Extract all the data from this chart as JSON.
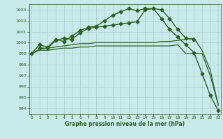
{
  "title": "Graphe pression niveau de la mer (hPa)",
  "bg_color": "#c8eaea",
  "grid_color": "#a8cece",
  "line_color": "#2d6020",
  "ylim": [
    993.5,
    1003.5
  ],
  "xlim": [
    -0.3,
    23.3
  ],
  "yticks": [
    994,
    995,
    996,
    997,
    998,
    999,
    1000,
    1001,
    1002,
    1003
  ],
  "xticks": [
    0,
    1,
    2,
    3,
    4,
    5,
    6,
    7,
    8,
    9,
    10,
    11,
    12,
    13,
    14,
    15,
    16,
    17,
    18,
    19,
    20,
    21,
    22,
    23
  ],
  "lines": [
    {
      "x": [
        0,
        1,
        2,
        3,
        4,
        5,
        6,
        7,
        8,
        9,
        10,
        11,
        12,
        13,
        14,
        15,
        16,
        17,
        18,
        19,
        20,
        21,
        22,
        23
      ],
      "y": [
        999.0,
        999.8,
        999.6,
        1000.3,
        1000.1,
        1000.6,
        1001.1,
        1001.4,
        1001.5,
        1002.0,
        1002.5,
        1002.8,
        1003.1,
        1002.9,
        1003.1,
        1003.1,
        1002.2,
        1001.2,
        1000.5,
        999.8,
        999.1,
        997.2,
        995.2,
        993.8
      ],
      "marker": "D",
      "markersize": 2.5,
      "linewidth": 1.0,
      "zorder": 4
    },
    {
      "x": [
        1,
        2,
        3,
        4,
        5,
        6,
        7,
        8,
        9,
        10,
        11,
        12,
        13,
        14,
        15,
        16,
        17,
        18,
        19,
        20
      ],
      "y": [
        999.5,
        999.5,
        1000.2,
        1000.4,
        1000.3,
        1000.9,
        1001.3,
        1001.4,
        1001.5,
        1001.6,
        1001.7,
        1001.8,
        1001.9,
        1003.0,
        1003.1,
        1003.0,
        1002.2,
        1001.2,
        1000.4,
        1000.3
      ],
      "marker": "D",
      "markersize": 2.5,
      "linewidth": 1.0,
      "zorder": 4
    },
    {
      "x": [
        0,
        1,
        2,
        3,
        4,
        5,
        6,
        7,
        8,
        9,
        10,
        11,
        12,
        13,
        14,
        15,
        16,
        17,
        18,
        19,
        20,
        21,
        22,
        23
      ],
      "y": [
        999.0,
        999.4,
        999.5,
        999.6,
        999.7,
        999.8,
        999.9,
        999.9,
        1000.0,
        1000.0,
        1000.0,
        1000.0,
        1000.0,
        1000.0,
        1000.0,
        1000.0,
        1000.1,
        1000.1,
        1000.2,
        1000.3,
        1000.4,
        999.3,
        997.5,
        994.3
      ],
      "marker": null,
      "markersize": 0,
      "linewidth": 0.9,
      "zorder": 3
    },
    {
      "x": [
        0,
        1,
        2,
        3,
        4,
        5,
        6,
        7,
        8,
        9,
        10,
        11,
        12,
        13,
        14,
        15,
        16,
        17,
        18,
        19,
        20,
        21,
        22,
        23
      ],
      "y": [
        999.0,
        999.3,
        999.3,
        999.4,
        999.5,
        999.5,
        999.6,
        999.6,
        999.7,
        999.7,
        999.7,
        999.7,
        999.7,
        999.7,
        999.7,
        999.7,
        999.7,
        999.7,
        999.8,
        999.0,
        999.0,
        999.0,
        997.0,
        994.3
      ],
      "marker": null,
      "markersize": 0,
      "linewidth": 0.9,
      "zorder": 3
    }
  ]
}
